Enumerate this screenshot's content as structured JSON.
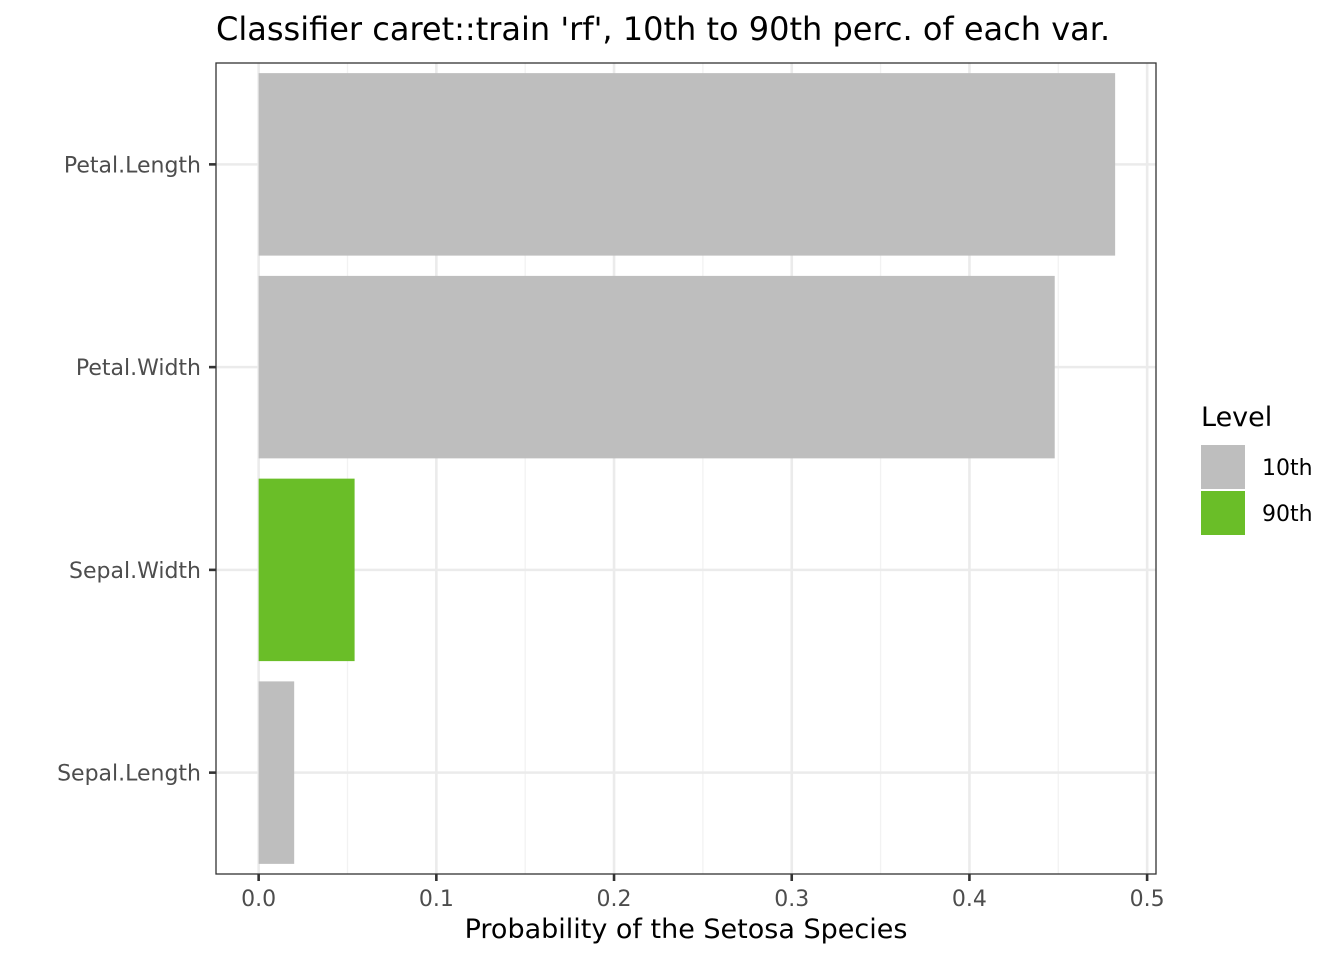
{
  "chart_data": {
    "type": "bar",
    "orientation": "horizontal",
    "title": "Classifier caret::train 'rf', 10th to 90th perc. of each var.",
    "xlabel": "Probability of the Setosa Species",
    "ylabel": "",
    "xlim": [
      -0.024,
      0.505
    ],
    "x_ticks": [
      0.0,
      0.1,
      0.2,
      0.3,
      0.4,
      0.5
    ],
    "x_tick_labels": [
      "0.0",
      "0.1",
      "0.2",
      "0.3",
      "0.4",
      "0.5"
    ],
    "categories": [
      "Petal.Length",
      "Petal.Width",
      "Sepal.Width",
      "Sepal.Length"
    ],
    "values": [
      0.482,
      0.448,
      0.054,
      0.02
    ],
    "levels": [
      "10th",
      "10th",
      "90th",
      "10th"
    ],
    "grid": true,
    "legend": {
      "title": "Level",
      "placement": "right",
      "items": [
        {
          "label": "10th",
          "color": "#bebebe"
        },
        {
          "label": "90th",
          "color": "#6abe28"
        }
      ]
    },
    "colors": {
      "10th": "#bebebe",
      "90th": "#6abe28",
      "panel_border": "#333333",
      "grid_major": "#ebebeb",
      "grid_minor": "#f2f2f2"
    }
  }
}
